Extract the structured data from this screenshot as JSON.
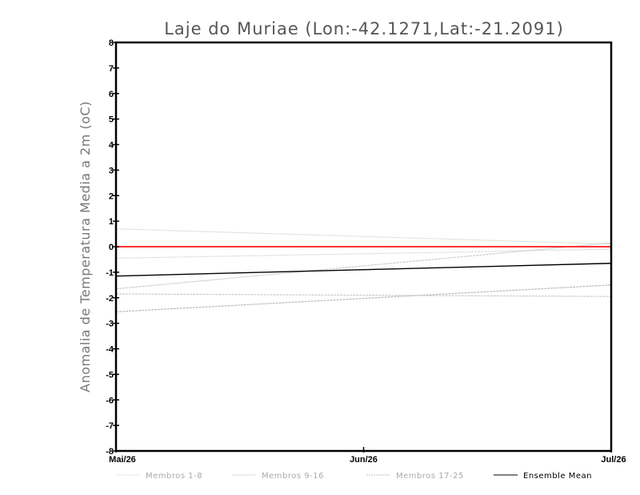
{
  "chart_data": {
    "type": "line",
    "title": "Laje do Muriae (Lon:-42.1271,Lat:-21.2091)",
    "xlabel": "",
    "ylabel": "Anomalia de Temperatura Media a 2m (oC)",
    "x_ticks": [
      "Mai/26",
      "Jun/26",
      "Jul/26"
    ],
    "x": [
      0,
      2
    ],
    "ylim": [
      -8,
      8
    ],
    "y_ticks": [
      "8",
      "7",
      "6",
      "5",
      "4",
      "3",
      "2",
      "1",
      "0",
      "-1",
      "-2",
      "-3",
      "-4",
      "-5",
      "-6",
      "-7",
      "-8"
    ],
    "grid": false,
    "reference_line": {
      "value": 0,
      "color": "#ff3333"
    },
    "series": [
      {
        "name": "Membros 1-8",
        "color": "#dddddd",
        "dashed": true,
        "lines": [
          [
            0.7,
            0.1
          ],
          [
            -0.45,
            -0.1
          ]
        ]
      },
      {
        "name": "Membros 9-16",
        "color": "#cccccc",
        "dashed": true,
        "lines": [
          [
            -1.65,
            0.15
          ],
          [
            -1.85,
            -1.95
          ]
        ]
      },
      {
        "name": "Membros 17-25",
        "color": "#bbbbbb",
        "dashed": true,
        "lines": [
          [
            -2.55,
            -1.5
          ]
        ]
      },
      {
        "name": "Ensemble Mean",
        "color": "#000000",
        "dashed": false,
        "lines": [
          [
            -1.15,
            -0.65
          ]
        ]
      }
    ],
    "legend_position": "bottom"
  }
}
